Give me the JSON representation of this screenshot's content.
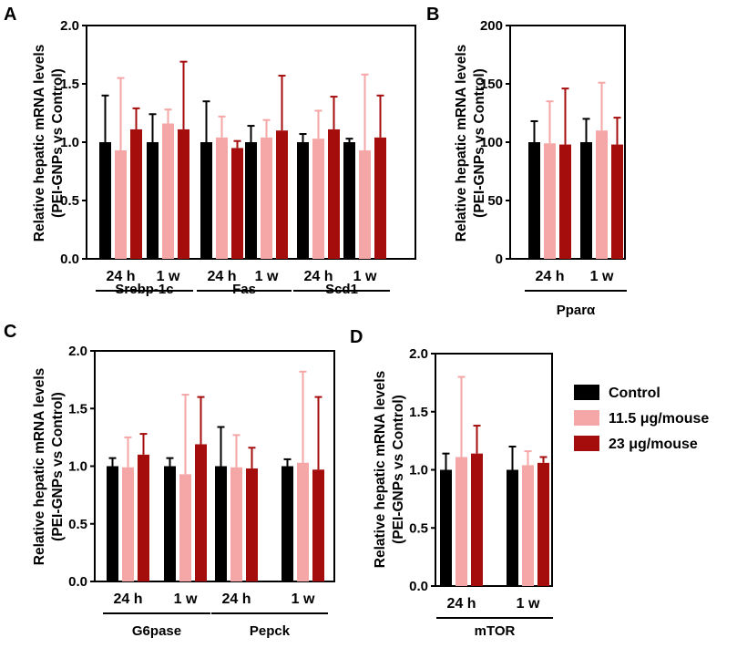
{
  "series_colors": [
    "#000000",
    "#F5A6A6",
    "#A50C0C"
  ],
  "legend": {
    "items": [
      {
        "label": "Control",
        "color": "#000000"
      },
      {
        "label": "11.5 μg/mouse",
        "color": "#F5A6A6"
      },
      {
        "label": "23 μg/mouse",
        "color": "#A50C0C"
      }
    ]
  },
  "chart_data": [
    {
      "type": "bar",
      "panel": "A",
      "ylabel_line1": "Relative hepatic mRNA levels",
      "ylabel_line2": "(PEI-GNPs vs Control)",
      "ylim": [
        0,
        2.0
      ],
      "yticks": [
        "0.0",
        "0.5",
        "1.0",
        "1.5",
        "2.0"
      ],
      "ytick_values": [
        0,
        0.5,
        1.0,
        1.5,
        2.0
      ],
      "series_names": [
        "Control",
        "11.5 μg/mouse",
        "23 μg/mouse"
      ],
      "groups": [
        {
          "label": "24 h",
          "values": [
            1.0,
            0.93,
            1.11
          ],
          "errors": [
            0.4,
            0.62,
            0.18
          ]
        },
        {
          "label": "1 w",
          "values": [
            1.0,
            1.16,
            1.11
          ],
          "errors": [
            0.24,
            0.12,
            0.58
          ]
        },
        {
          "label": "24 h",
          "values": [
            1.0,
            1.04,
            0.95
          ],
          "errors": [
            0.35,
            0.18,
            0.06
          ]
        },
        {
          "label": "1 w",
          "values": [
            1.0,
            1.04,
            1.1
          ],
          "errors": [
            0.14,
            0.15,
            0.47
          ]
        },
        {
          "label": "24 h",
          "values": [
            1.0,
            1.03,
            1.11
          ],
          "errors": [
            0.07,
            0.24,
            0.28
          ]
        },
        {
          "label": "1 w",
          "values": [
            1.0,
            0.93,
            1.04
          ],
          "errors": [
            0.03,
            0.65,
            0.36
          ]
        }
      ],
      "genes": [
        {
          "label": "Srebp-1c",
          "groups": [
            0,
            1
          ]
        },
        {
          "label": "Fas",
          "groups": [
            2,
            3
          ]
        },
        {
          "label": "Scd1",
          "groups": [
            4,
            5
          ]
        }
      ]
    },
    {
      "type": "bar",
      "panel": "B",
      "ylabel_line1": "Relative hepatic mRNA levels",
      "ylabel_line2": "(PEI-GNPs vs Control)",
      "ylim": [
        0,
        200
      ],
      "yticks": [
        "0",
        "50",
        "100",
        "150",
        "200"
      ],
      "ytick_values": [
        0,
        50,
        100,
        150,
        200
      ],
      "series_names": [
        "Control",
        "11.5 μg/mouse",
        "23 μg/mouse"
      ],
      "groups": [
        {
          "label": "24 h",
          "values": [
            100,
            99,
            98
          ],
          "errors": [
            18,
            36,
            48
          ]
        },
        {
          "label": "1 w",
          "values": [
            100,
            110,
            98
          ],
          "errors": [
            20,
            41,
            23
          ]
        }
      ],
      "genes": [
        {
          "label": "Pparα",
          "groups": [
            0,
            1
          ]
        }
      ]
    },
    {
      "type": "bar",
      "panel": "C",
      "ylabel_line1": "Relative hepatic mRNA levels",
      "ylabel_line2": "(PEI-GNPs vs Control)",
      "ylim": [
        0,
        2.0
      ],
      "yticks": [
        "0.0",
        "0.5",
        "1.0",
        "1.5",
        "2.0"
      ],
      "ytick_values": [
        0,
        0.5,
        1.0,
        1.5,
        2.0
      ],
      "series_names": [
        "Control",
        "11.5 μg/mouse",
        "23 μg/mouse"
      ],
      "groups": [
        {
          "label": "24 h",
          "values": [
            1.0,
            0.99,
            1.1
          ],
          "errors": [
            0.07,
            0.26,
            0.18
          ]
        },
        {
          "label": "1 w",
          "values": [
            1.0,
            0.93,
            1.19
          ],
          "errors": [
            0.07,
            0.69,
            0.41
          ]
        },
        {
          "label": "24 h",
          "values": [
            1.0,
            0.99,
            0.98
          ],
          "errors": [
            0.34,
            0.28,
            0.18
          ]
        },
        {
          "label": "1 w",
          "values": [
            1.0,
            1.03,
            0.97
          ],
          "errors": [
            0.06,
            0.79,
            0.63
          ]
        }
      ],
      "genes": [
        {
          "label": "G6pase",
          "groups": [
            0,
            1
          ]
        },
        {
          "label": "Pepck",
          "groups": [
            2,
            3
          ]
        }
      ]
    },
    {
      "type": "bar",
      "panel": "D",
      "ylabel_line1": "Relative hepatic mRNA levels",
      "ylabel_line2": "(PEI-GNPs vs Control)",
      "ylim": [
        0,
        2.0
      ],
      "yticks": [
        "0.0",
        "0.5",
        "1.0",
        "1.5",
        "2.0"
      ],
      "ytick_values": [
        0,
        0.5,
        1.0,
        1.5,
        2.0
      ],
      "series_names": [
        "Control",
        "11.5 μg/mouse",
        "23 μg/mouse"
      ],
      "groups": [
        {
          "label": "24 h",
          "values": [
            1.0,
            1.11,
            1.14
          ],
          "errors": [
            0.14,
            0.69,
            0.24
          ]
        },
        {
          "label": "1 w",
          "values": [
            1.0,
            1.04,
            1.06
          ],
          "errors": [
            0.2,
            0.12,
            0.05
          ]
        }
      ],
      "genes": [
        {
          "label": "mTOR",
          "groups": [
            0,
            1
          ]
        }
      ]
    }
  ]
}
